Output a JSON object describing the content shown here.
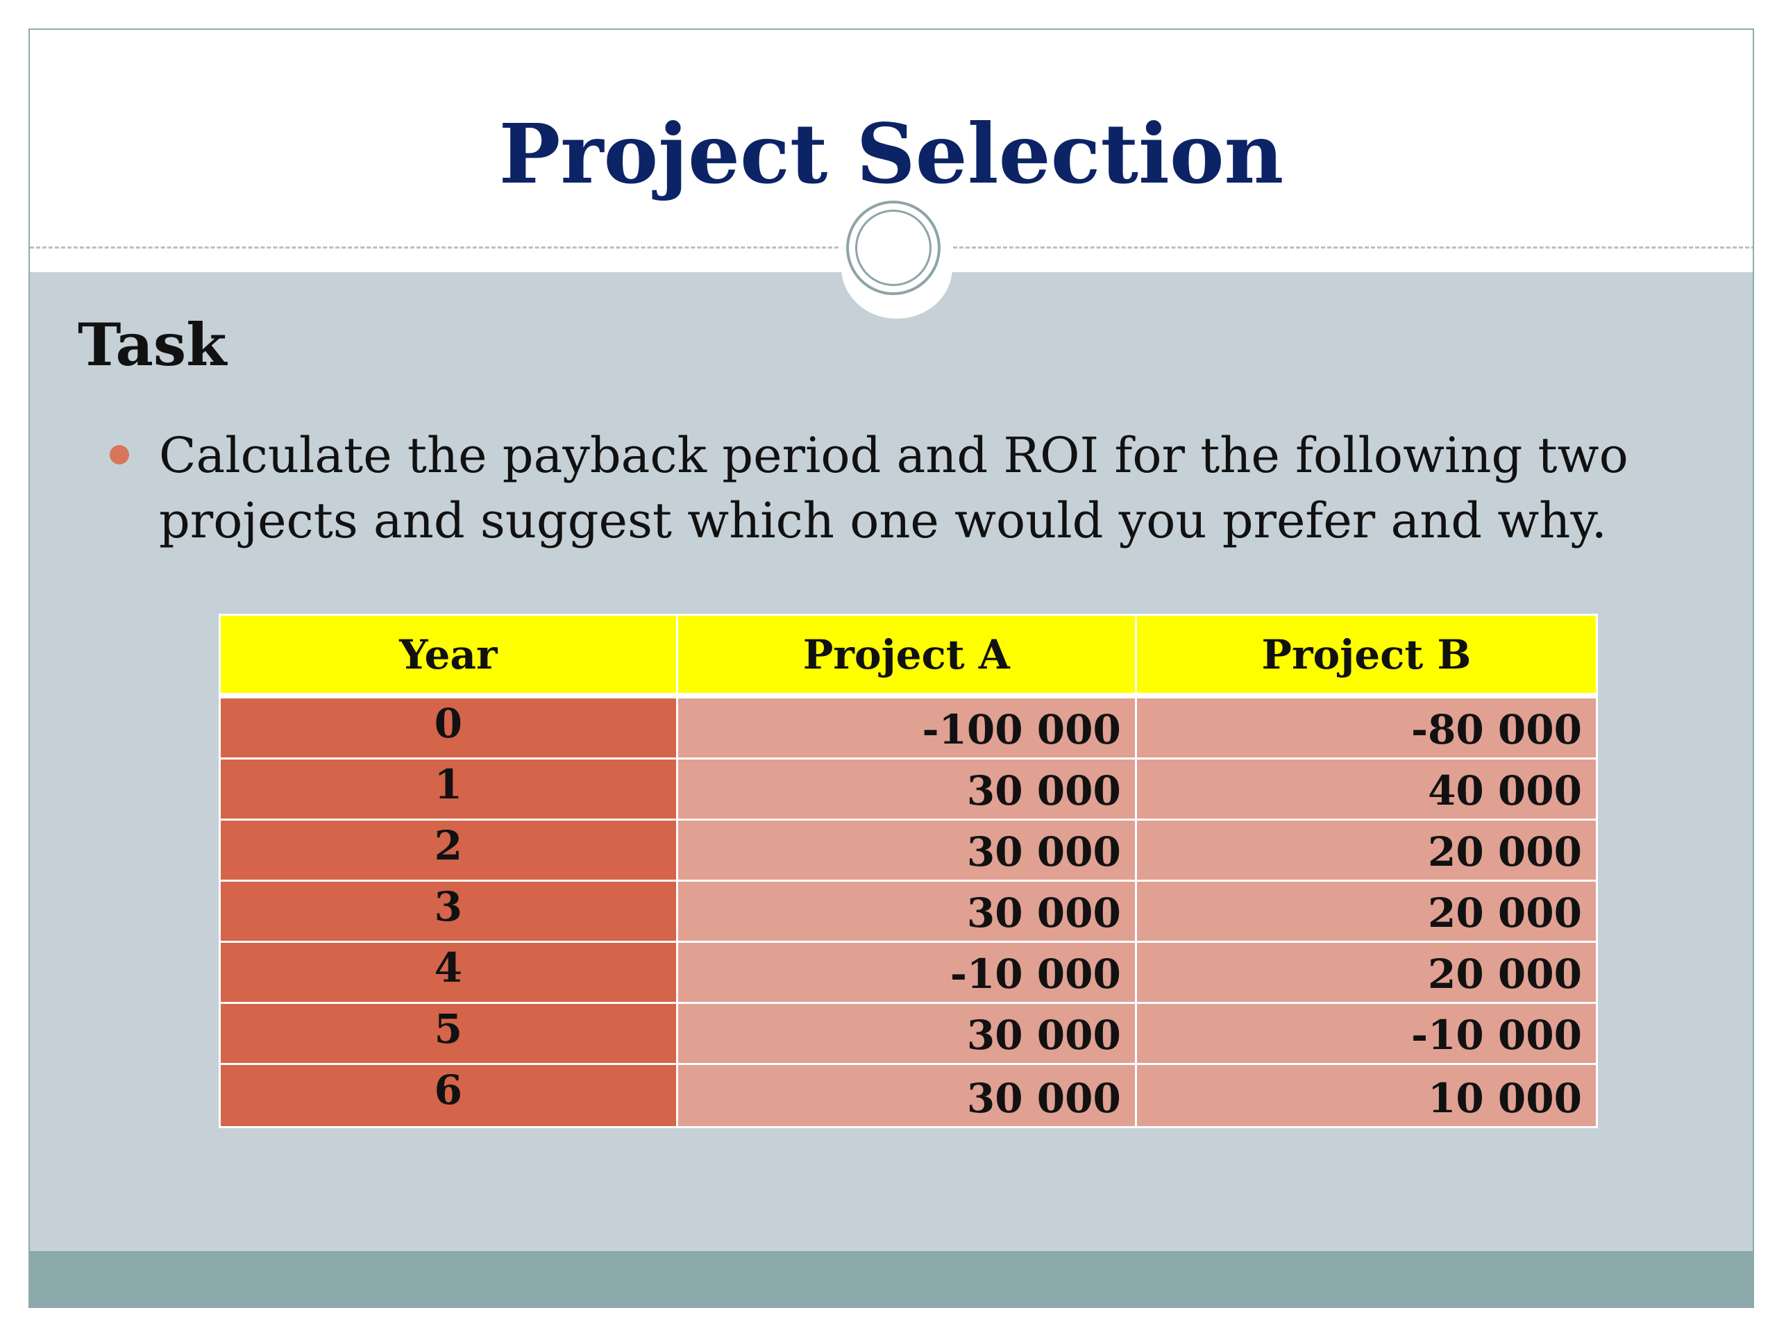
{
  "slide": {
    "title": "Project Selection",
    "heading": "Task",
    "bullet": "Calculate the payback period and ROI for the following two projects and suggest which one would you prefer and why.",
    "colors": {
      "title": "#0c2466",
      "body_background": "#c5d1d7",
      "footer_band": "#8ba8aa",
      "table_header": "#ffff00",
      "year_cells": "#d4644a",
      "value_cells": "#e0a092",
      "bullet": "#d9765a"
    }
  },
  "table": {
    "headers": {
      "year": "Year",
      "a": "Project A",
      "b": "Project B"
    },
    "rows": [
      {
        "year": "0",
        "a": "-100 000",
        "b": "-80 000"
      },
      {
        "year": "1",
        "a": "30 000",
        "b": "40 000"
      },
      {
        "year": "2",
        "a": "30 000",
        "b": "20 000"
      },
      {
        "year": "3",
        "a": "30 000",
        "b": "20 000"
      },
      {
        "year": "4",
        "a": "-10 000",
        "b": "20 000"
      },
      {
        "year": "5",
        "a": "30 000",
        "b": "-10 000"
      },
      {
        "year": "6",
        "a": "30 000",
        "b": "10 000"
      }
    ]
  }
}
